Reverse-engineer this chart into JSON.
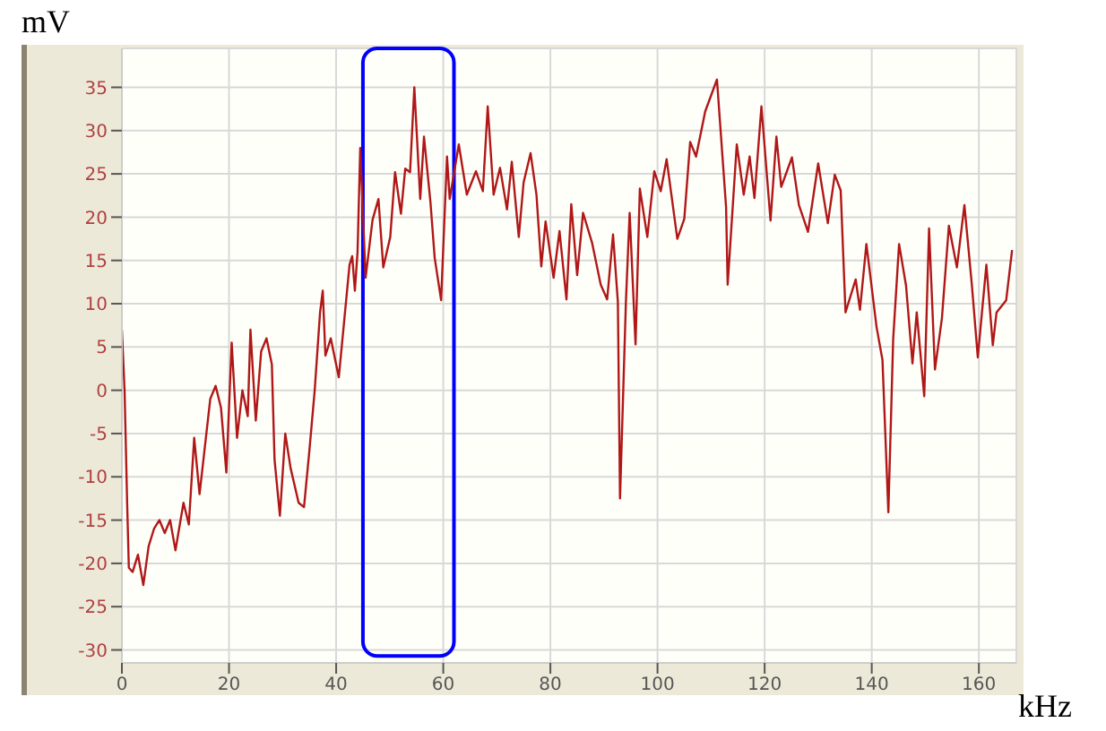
{
  "chart_data": {
    "type": "line",
    "xlabel": "kHz",
    "ylabel": "mV",
    "xlim": [
      0,
      167
    ],
    "ylim": [
      -31.5,
      39.5
    ],
    "xticks": [
      0,
      20,
      40,
      60,
      80,
      100,
      120,
      140,
      160
    ],
    "yticks": [
      -30,
      -25,
      -20,
      -15,
      -10,
      -5,
      0,
      5,
      10,
      15,
      20,
      25,
      30,
      35
    ],
    "grid": true,
    "series": [
      {
        "color": "#b01818",
        "x": [
          0,
          0.5,
          1,
          1.3,
          2,
          3,
          4,
          5,
          6,
          7,
          8,
          9,
          10,
          11.5,
          12.5,
          13.5,
          14.5,
          15.5,
          16.5,
          17.5,
          18.5,
          19.5,
          20.5,
          21.5,
          22.5,
          23.5,
          24,
          25,
          26,
          27,
          28,
          28.5,
          29.5,
          30.5,
          31.5,
          33,
          34,
          35,
          36,
          37,
          37.5,
          38,
          39,
          40.5,
          41.5,
          42.5,
          43,
          43.5,
          44,
          44.5,
          45.5,
          46.8,
          47.9,
          48.8,
          50.1,
          51,
          52.1,
          52.9,
          53.8,
          54.6,
          55.7,
          56.4,
          57.6,
          58.4,
          59.6,
          60.7,
          61.2,
          62.9,
          64.4,
          66.1,
          67.4,
          68.3,
          69.4,
          70.6,
          71.9,
          72.8,
          74.1,
          75,
          76.3,
          77.4,
          78.3,
          79.1,
          80.6,
          81.7,
          83,
          83.9,
          85,
          86.1,
          87.8,
          89.4,
          90.6,
          91.7,
          92.6,
          93,
          94.1,
          94.8,
          95.9,
          96.7,
          98.1,
          99.4,
          100.6,
          101.7,
          103.7,
          105,
          106.1,
          107.2,
          108.9,
          111.1,
          112.8,
          113.1,
          114.8,
          116.1,
          117.2,
          118.1,
          119.4,
          121.1,
          122.2,
          123.1,
          125.1,
          126.4,
          128.1,
          130,
          131.8,
          133.1,
          134.2,
          135.1,
          137,
          137.8,
          139,
          140.9,
          142,
          143.1,
          144,
          145.1,
          146.4,
          147.6,
          148.4,
          149.8,
          150.7,
          151.8,
          153.1,
          154.4,
          155.9,
          157.3,
          158.7,
          159.8,
          161.4,
          162.6,
          163.3,
          165.1,
          166.2
        ],
        "values": [
          7,
          0,
          -13.5,
          -20.5,
          -21,
          -19,
          -22.5,
          -18,
          -16,
          -15,
          -16.5,
          -15,
          -18.5,
          -13,
          -15.5,
          -5.5,
          -12,
          -6.5,
          -1,
          0.5,
          -2,
          -9.5,
          5.5,
          -5.5,
          0,
          -3,
          7,
          -3.5,
          4.5,
          6,
          3,
          -8,
          -14.5,
          -5,
          -9,
          -13,
          -13.5,
          -7,
          0,
          9,
          11.5,
          4,
          6,
          1.5,
          8,
          14.5,
          15.5,
          11.5,
          16,
          28,
          13,
          19.7,
          22.1,
          14.2,
          17.7,
          25.2,
          20.4,
          25.6,
          25.2,
          35,
          22.1,
          29.3,
          21.8,
          15.3,
          10.4,
          27,
          22.1,
          28.4,
          22.6,
          25.3,
          23,
          32.8,
          22.6,
          25.7,
          20.9,
          26.4,
          17.7,
          24,
          27.4,
          22.6,
          14.3,
          19.5,
          13,
          18.4,
          10.5,
          21.5,
          13.3,
          20.5,
          17,
          12.2,
          10.5,
          18,
          10.2,
          -12.5,
          10.2,
          20.5,
          5.3,
          23.3,
          17.7,
          25.3,
          23,
          26.7,
          17.5,
          19.8,
          28.7,
          27,
          32.2,
          35.9,
          21.2,
          12.2,
          28.4,
          22.6,
          27,
          22.2,
          32.8,
          19.6,
          29.3,
          23.5,
          26.9,
          21.4,
          18.3,
          26.2,
          19.3,
          24.9,
          23.1,
          9,
          12.8,
          9.3,
          16.9,
          7.3,
          3.5,
          -14.1,
          5.9,
          16.9,
          12.1,
          3.1,
          9,
          -0.7,
          18.7,
          2.4,
          8.3,
          19,
          14.2,
          21.4,
          12.1,
          3.8,
          14.5,
          5.2,
          9,
          10.4,
          16.2
        ]
      }
    ]
  }
}
